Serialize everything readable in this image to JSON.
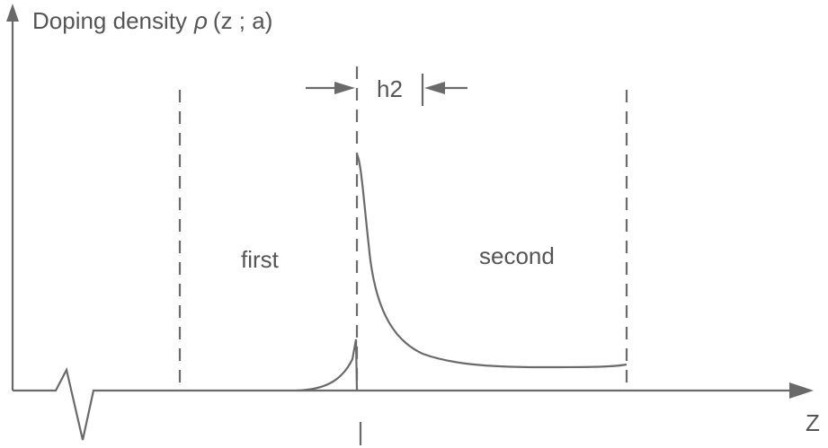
{
  "axis_label": {
    "prefix": "Doping density",
    "symbol": "ρ",
    "suffix": "(z ; a)"
  },
  "x_axis_label": "Z",
  "width_label": "h2",
  "regions": [
    "first",
    "second"
  ]
}
